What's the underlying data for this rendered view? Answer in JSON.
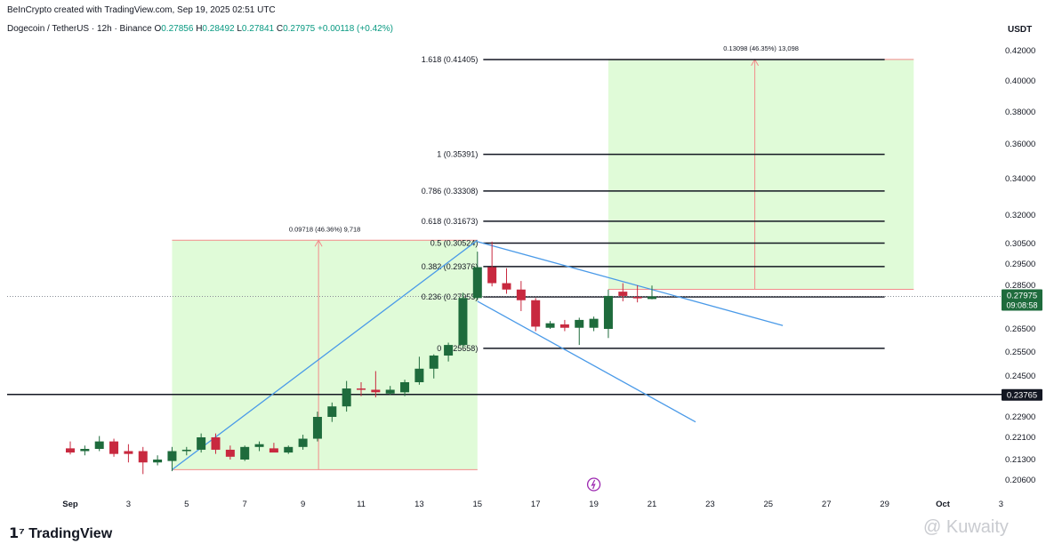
{
  "header": {
    "credit": "BeInCrypto created with TradingView.com, Sep 19, 2025 02:51 UTC",
    "symbol": "Dogecoin / TetherUS · 12h · Binance",
    "o_label": "O",
    "o_value": "0.27856",
    "h_label": "H",
    "h_value": "0.28492",
    "l_label": "L",
    "l_value": "0.27841",
    "c_label": "C",
    "c_value": "0.27975",
    "change": "+0.00118 (+0.42%)",
    "currency": "USDT"
  },
  "footer": {
    "logo_text": "TradingView",
    "watermark": "@ Kuwaity"
  },
  "colors": {
    "up": "#1e6b3c",
    "down": "#c8293f",
    "zone": "#e0fbd8",
    "zone_border": "#f28b8b",
    "channel": "#4a9ae8",
    "fib": "#131722",
    "price_tag": "#1e6b3c",
    "level_tag": "#131722"
  },
  "chart_data": {
    "type": "candlestick",
    "x_axis_labels": [
      "Sep",
      "3",
      "5",
      "7",
      "9",
      "11",
      "13",
      "15",
      "17",
      "19",
      "21",
      "23",
      "25",
      "27",
      "29",
      "Oct",
      "3"
    ],
    "y_axis_labels": [
      "0.42000",
      "0.40000",
      "0.38000",
      "0.36000",
      "0.34000",
      "0.32000",
      "0.30500",
      "0.29500",
      "0.28500",
      "0.26500",
      "0.25500",
      "0.24500",
      "0.22900",
      "0.22100",
      "0.21300",
      "0.20600"
    ],
    "y_axis_values": [
      0.42,
      0.4,
      0.38,
      0.36,
      0.34,
      0.32,
      0.305,
      0.295,
      0.285,
      0.265,
      0.255,
      0.245,
      0.229,
      0.221,
      0.213,
      0.206
    ],
    "ylim": [
      0.2,
      0.425
    ],
    "candles": [
      {
        "day": 1.0,
        "o": 0.217,
        "h": 0.2195,
        "l": 0.2148,
        "c": 0.2155
      },
      {
        "day": 1.5,
        "o": 0.216,
        "h": 0.218,
        "l": 0.2145,
        "c": 0.2168
      },
      {
        "day": 2.0,
        "o": 0.2168,
        "h": 0.2215,
        "l": 0.216,
        "c": 0.2195
      },
      {
        "day": 2.5,
        "o": 0.2195,
        "h": 0.2205,
        "l": 0.214,
        "c": 0.215
      },
      {
        "day": 3.0,
        "o": 0.216,
        "h": 0.2185,
        "l": 0.212,
        "c": 0.215
      },
      {
        "day": 3.5,
        "o": 0.216,
        "h": 0.2175,
        "l": 0.208,
        "c": 0.212
      },
      {
        "day": 4.0,
        "o": 0.212,
        "h": 0.2145,
        "l": 0.211,
        "c": 0.213
      },
      {
        "day": 4.5,
        "o": 0.2125,
        "h": 0.2175,
        "l": 0.209,
        "c": 0.216
      },
      {
        "day": 5.0,
        "o": 0.216,
        "h": 0.2175,
        "l": 0.2145,
        "c": 0.2165
      },
      {
        "day": 5.5,
        "o": 0.2165,
        "h": 0.2225,
        "l": 0.2155,
        "c": 0.221
      },
      {
        "day": 6.0,
        "o": 0.221,
        "h": 0.2225,
        "l": 0.215,
        "c": 0.2165
      },
      {
        "day": 6.5,
        "o": 0.2165,
        "h": 0.218,
        "l": 0.213,
        "c": 0.214
      },
      {
        "day": 7.0,
        "o": 0.213,
        "h": 0.218,
        "l": 0.2125,
        "c": 0.2175
      },
      {
        "day": 7.5,
        "o": 0.2175,
        "h": 0.2195,
        "l": 0.216,
        "c": 0.2185
      },
      {
        "day": 8.0,
        "o": 0.217,
        "h": 0.219,
        "l": 0.216,
        "c": 0.2155
      },
      {
        "day": 8.5,
        "o": 0.2155,
        "h": 0.218,
        "l": 0.215,
        "c": 0.2175
      },
      {
        "day": 9.0,
        "o": 0.2175,
        "h": 0.222,
        "l": 0.2165,
        "c": 0.2205
      },
      {
        "day": 9.5,
        "o": 0.2205,
        "h": 0.231,
        "l": 0.2195,
        "c": 0.229
      },
      {
        "day": 10.0,
        "o": 0.229,
        "h": 0.2345,
        "l": 0.227,
        "c": 0.233
      },
      {
        "day": 10.5,
        "o": 0.233,
        "h": 0.243,
        "l": 0.231,
        "c": 0.24
      },
      {
        "day": 11.0,
        "o": 0.24,
        "h": 0.2425,
        "l": 0.237,
        "c": 0.2395
      },
      {
        "day": 11.5,
        "o": 0.2395,
        "h": 0.247,
        "l": 0.2365,
        "c": 0.2385
      },
      {
        "day": 12.0,
        "o": 0.238,
        "h": 0.241,
        "l": 0.2375,
        "c": 0.2395
      },
      {
        "day": 12.5,
        "o": 0.2385,
        "h": 0.2435,
        "l": 0.237,
        "c": 0.2425
      },
      {
        "day": 13.0,
        "o": 0.2425,
        "h": 0.253,
        "l": 0.2415,
        "c": 0.248
      },
      {
        "day": 13.5,
        "o": 0.248,
        "h": 0.254,
        "l": 0.244,
        "c": 0.2535
      },
      {
        "day": 14.0,
        "o": 0.2535,
        "h": 0.259,
        "l": 0.251,
        "c": 0.258
      },
      {
        "day": 14.5,
        "o": 0.258,
        "h": 0.2815,
        "l": 0.257,
        "c": 0.279
      },
      {
        "day": 15.0,
        "o": 0.279,
        "h": 0.301,
        "l": 0.278,
        "c": 0.2935
      },
      {
        "day": 15.5,
        "o": 0.2935,
        "h": 0.306,
        "l": 0.2845,
        "c": 0.286
      },
      {
        "day": 16.0,
        "o": 0.286,
        "h": 0.293,
        "l": 0.281,
        "c": 0.283
      },
      {
        "day": 16.5,
        "o": 0.283,
        "h": 0.287,
        "l": 0.273,
        "c": 0.278
      },
      {
        "day": 17.0,
        "o": 0.278,
        "h": 0.279,
        "l": 0.264,
        "c": 0.266
      },
      {
        "day": 17.5,
        "o": 0.2655,
        "h": 0.2685,
        "l": 0.265,
        "c": 0.2675
      },
      {
        "day": 18.0,
        "o": 0.267,
        "h": 0.269,
        "l": 0.264,
        "c": 0.2655
      },
      {
        "day": 18.5,
        "o": 0.2655,
        "h": 0.27,
        "l": 0.258,
        "c": 0.269
      },
      {
        "day": 19.0,
        "o": 0.2655,
        "h": 0.2705,
        "l": 0.264,
        "c": 0.2695
      },
      {
        "day": 19.5,
        "o": 0.265,
        "h": 0.283,
        "l": 0.261,
        "c": 0.28
      },
      {
        "day": 20.0,
        "o": 0.282,
        "h": 0.286,
        "l": 0.2775,
        "c": 0.28
      },
      {
        "day": 20.5,
        "o": 0.2795,
        "h": 0.285,
        "l": 0.277,
        "c": 0.279
      },
      {
        "day": 21.0,
        "o": 0.27856,
        "h": 0.28492,
        "l": 0.27841,
        "c": 0.27975
      }
    ],
    "fib_levels": [
      {
        "label": "1.618 (0.41405)",
        "value": 0.41405
      },
      {
        "label": "1 (0.35391)",
        "value": 0.35391
      },
      {
        "label": "0.786 (0.33308)",
        "value": 0.33308
      },
      {
        "label": "0.618 (0.31673)",
        "value": 0.31673
      },
      {
        "label": "0.5 (0.30524)",
        "value": 0.30524
      },
      {
        "label": "0.382 (0.29376)",
        "value": 0.29376
      },
      {
        "label": "0.236 (0.27955)",
        "value": 0.27955
      },
      {
        "label": "0 (0.25658)",
        "value": 0.25658
      }
    ],
    "fib_start_day": 15.2,
    "fib_end_day": 29.0,
    "horizontal_support": {
      "value": 0.23765,
      "label": "0.23765"
    },
    "current_price": {
      "value": 0.27975,
      "label": "0.27975",
      "countdown": "09:08:58"
    },
    "measure_zones": [
      {
        "label": "0.09718 (46.36%) 9,718",
        "day_start": 4.5,
        "day_end": 15.0,
        "low": 0.2095,
        "high": 0.3067
      },
      {
        "label": "0.13098 (46.35%) 13,098",
        "day_start": 19.5,
        "day_end": 30.0,
        "low": 0.2831,
        "high": 0.4141
      }
    ],
    "channel_lines": [
      {
        "from": {
          "day": 4.5,
          "value": 0.2095
        },
        "to": {
          "day": 15.0,
          "value": 0.3067
        }
      },
      {
        "from": {
          "day": 15.0,
          "value": 0.306
        },
        "to": {
          "day": 25.5,
          "value": 0.2665
        }
      },
      {
        "from": {
          "day": 15.0,
          "value": 0.2775
        },
        "to": {
          "day": 22.5,
          "value": 0.227
        }
      }
    ],
    "event_marker_day": 19.0
  }
}
